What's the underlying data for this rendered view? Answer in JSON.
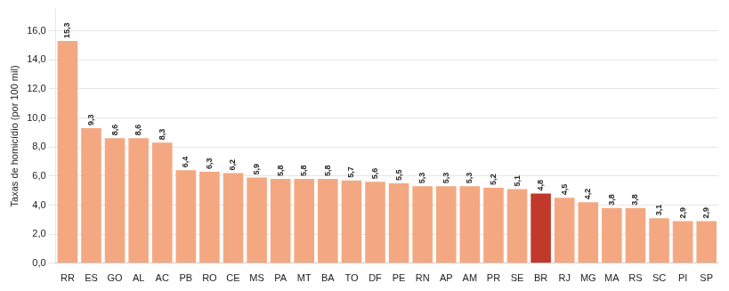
{
  "chart_data": {
    "type": "bar",
    "ylabel": "Taxas de homicídio (por 100 mil)",
    "categories": [
      "RR",
      "ES",
      "GO",
      "AL",
      "AC",
      "PB",
      "RO",
      "CE",
      "MS",
      "PA",
      "MT",
      "BA",
      "TO",
      "DF",
      "PE",
      "RN",
      "AP",
      "AM",
      "PR",
      "SE",
      "BR",
      "RJ",
      "MG",
      "MA",
      "RS",
      "SC",
      "PI",
      "SP"
    ],
    "values": [
      15.3,
      9.3,
      8.6,
      8.6,
      8.3,
      6.4,
      6.3,
      6.2,
      5.9,
      5.8,
      5.8,
      5.8,
      5.7,
      5.6,
      5.5,
      5.3,
      5.3,
      5.3,
      5.2,
      5.1,
      4.8,
      4.5,
      4.2,
      3.8,
      3.8,
      3.1,
      2.9,
      2.9
    ],
    "value_labels": [
      "15,3",
      "9,3",
      "8,6",
      "8,6",
      "8,3",
      "6,4",
      "6,3",
      "6,2",
      "5,9",
      "5,8",
      "5,8",
      "5,8",
      "5,7",
      "5,6",
      "5,5",
      "5,3",
      "5,3",
      "5,3",
      "5,2",
      "5,1",
      "4,8",
      "4,5",
      "4,2",
      "3,8",
      "3,8",
      "3,1",
      "2,9",
      "2,9"
    ],
    "data_labels": true,
    "colors": [
      "#F4A882",
      "#F4A882",
      "#F4A882",
      "#F4A882",
      "#F4A882",
      "#F4A882",
      "#F4A882",
      "#F4A882",
      "#F4A882",
      "#F4A882",
      "#F4A882",
      "#F4A882",
      "#F4A882",
      "#F4A882",
      "#F4A882",
      "#F4A882",
      "#F4A882",
      "#F4A882",
      "#F4A882",
      "#F4A882",
      "#C0392B",
      "#F4A882",
      "#F4A882",
      "#F4A882",
      "#F4A882",
      "#F4A882",
      "#F4A882",
      "#F4A882"
    ],
    "ylim": [
      0,
      17.5
    ],
    "yticks": [
      {
        "value": 0,
        "label": "0,0"
      },
      {
        "value": 2,
        "label": "2,0"
      },
      {
        "value": 4,
        "label": "4,0"
      },
      {
        "value": 6,
        "label": "6,0"
      },
      {
        "value": 8,
        "label": "8,0"
      },
      {
        "value": 10,
        "label": "10,0"
      },
      {
        "value": 12,
        "label": "12,0"
      },
      {
        "value": 14,
        "label": "14,0"
      },
      {
        "value": 16,
        "label": "16,0"
      }
    ],
    "grid": true
  }
}
